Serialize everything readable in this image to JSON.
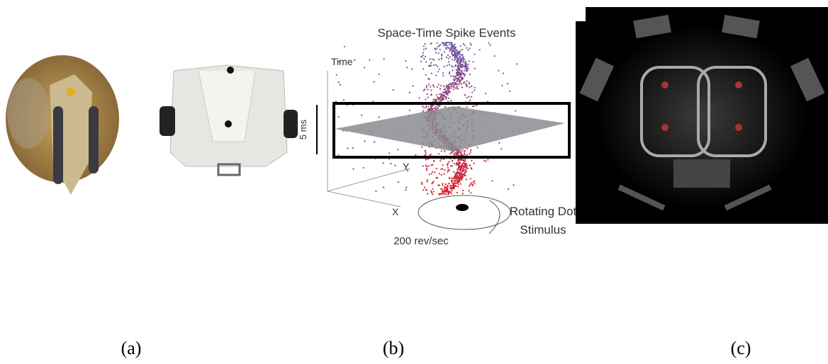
{
  "figure": {
    "panel_b": {
      "title": "Space-Time Spike Events",
      "time_axis": "Time",
      "scale_label": "5 ms",
      "y_axis": "Y",
      "x_axis": "X",
      "stimulus_line1": "Rotating Dot",
      "stimulus_line2": "Stimulus",
      "rate": "200 rev/sec"
    },
    "captions": [
      "(a)",
      "(b)",
      "(c)"
    ]
  }
}
